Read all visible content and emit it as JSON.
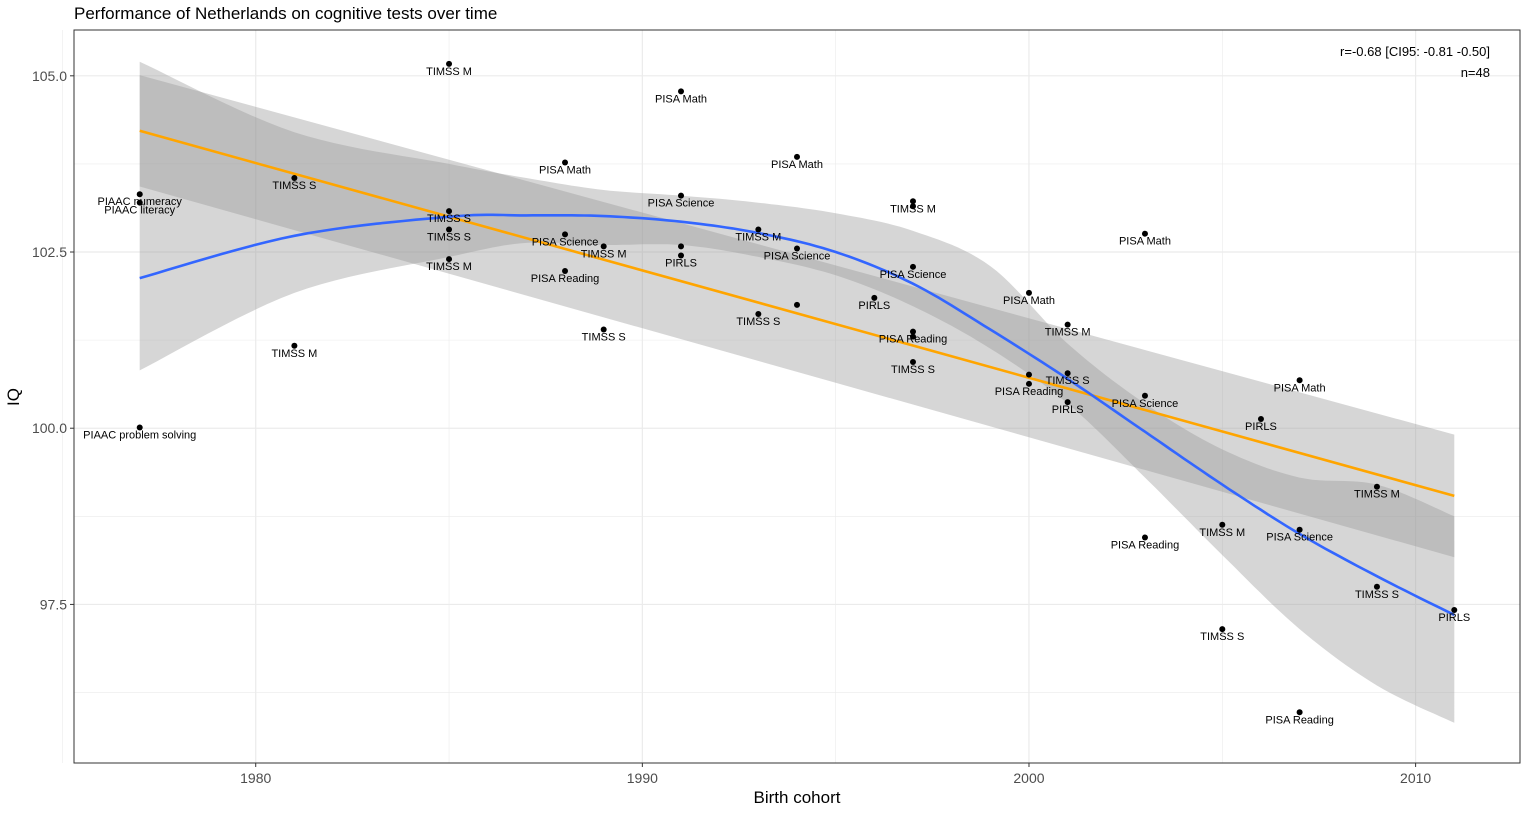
{
  "chart_data": {
    "type": "scatter",
    "title": "Performance of Netherlands on cognitive tests over time",
    "xlabel": "Birth cohort",
    "ylabel": "IQ",
    "xlim": [
      1975.3,
      2012.7
    ],
    "ylim": [
      95.25,
      105.65
    ],
    "x_ticks": [
      1980,
      1990,
      2000,
      2010
    ],
    "y_ticks": [
      97.5,
      100.0,
      102.5,
      105.0
    ],
    "x_tick_labels": [
      "1980",
      "1990",
      "2000",
      "2010"
    ],
    "y_tick_labels": [
      "97.5",
      "100.0",
      "102.5",
      "105.0"
    ],
    "x_minor": [
      1975,
      1985,
      1995,
      2005
    ],
    "y_minor": [
      96.25,
      98.75,
      101.25,
      103.75
    ],
    "grid": true,
    "annotation": [
      "r=-0.68 [CI95: -0.81 -0.50]",
      "n=48"
    ],
    "points": [
      {
        "x": 1977,
        "y": 103.32,
        "label": "PIAAC numeracy"
      },
      {
        "x": 1977,
        "y": 103.2,
        "label": "PIAAC literacy"
      },
      {
        "x": 1977,
        "y": 100.01,
        "label": "PIAAC problem solving"
      },
      {
        "x": 1981,
        "y": 103.55,
        "label": "TIMSS S"
      },
      {
        "x": 1981,
        "y": 101.17,
        "label": "TIMSS M"
      },
      {
        "x": 1985,
        "y": 105.17,
        "label": "TIMSS M"
      },
      {
        "x": 1985,
        "y": 103.08,
        "label": "TIMSS S"
      },
      {
        "x": 1985,
        "y": 102.82,
        "label": "TIMSS S"
      },
      {
        "x": 1985,
        "y": 102.4,
        "label": "TIMSS M"
      },
      {
        "x": 1988,
        "y": 103.77,
        "label": "PISA Math"
      },
      {
        "x": 1988,
        "y": 102.75,
        "label": "PISA Science"
      },
      {
        "x": 1988,
        "y": 102.23,
        "label": "PISA Reading"
      },
      {
        "x": 1989,
        "y": 102.58,
        "label": "TIMSS M"
      },
      {
        "x": 1989,
        "y": 101.4,
        "label": "TIMSS S"
      },
      {
        "x": 1991,
        "y": 104.78,
        "label": "PISA Math"
      },
      {
        "x": 1991,
        "y": 103.3,
        "label": "PISA Science"
      },
      {
        "x": 1991,
        "y": 102.58,
        "label": ""
      },
      {
        "x": 1991,
        "y": 102.45,
        "label": "PIRLS"
      },
      {
        "x": 1993,
        "y": 102.82,
        "label": "TIMSS M"
      },
      {
        "x": 1993,
        "y": 101.62,
        "label": "TIMSS S"
      },
      {
        "x": 1994,
        "y": 103.85,
        "label": "PISA Math"
      },
      {
        "x": 1994,
        "y": 102.55,
        "label": "PISA Science"
      },
      {
        "x": 1994,
        "y": 101.75,
        "label": ""
      },
      {
        "x": 1996,
        "y": 101.85,
        "label": "PIRLS"
      },
      {
        "x": 1997,
        "y": 103.22,
        "label": "TIMSS M"
      },
      {
        "x": 1997,
        "y": 103.15,
        "label": ""
      },
      {
        "x": 1997,
        "y": 102.29,
        "label": "PISA Science"
      },
      {
        "x": 1997,
        "y": 101.37,
        "label": "PISA Reading"
      },
      {
        "x": 1997,
        "y": 101.3,
        "label": ""
      },
      {
        "x": 1997,
        "y": 100.94,
        "label": "TIMSS S"
      },
      {
        "x": 2000,
        "y": 101.92,
        "label": "PISA Math"
      },
      {
        "x": 2000,
        "y": 100.76,
        "label": ""
      },
      {
        "x": 2000,
        "y": 100.63,
        "label": "PISA Reading"
      },
      {
        "x": 2001,
        "y": 101.47,
        "label": "TIMSS M"
      },
      {
        "x": 2001,
        "y": 100.78,
        "label": "TIMSS S"
      },
      {
        "x": 2001,
        "y": 100.37,
        "label": "PIRLS"
      },
      {
        "x": 2003,
        "y": 102.76,
        "label": "PISA Math"
      },
      {
        "x": 2003,
        "y": 100.46,
        "label": "PISA Science"
      },
      {
        "x": 2003,
        "y": 98.45,
        "label": "PISA Reading"
      },
      {
        "x": 2005,
        "y": 98.63,
        "label": "TIMSS M"
      },
      {
        "x": 2005,
        "y": 97.15,
        "label": "TIMSS S"
      },
      {
        "x": 2006,
        "y": 100.13,
        "label": "PIRLS"
      },
      {
        "x": 2007,
        "y": 100.68,
        "label": "PISA Math"
      },
      {
        "x": 2007,
        "y": 98.56,
        "label": "PISA Science"
      },
      {
        "x": 2007,
        "y": 95.97,
        "label": "PISA Reading"
      },
      {
        "x": 2009,
        "y": 99.17,
        "label": "TIMSS M"
      },
      {
        "x": 2009,
        "y": 97.75,
        "label": "TIMSS S"
      },
      {
        "x": 2011,
        "y": 97.42,
        "label": "PIRLS"
      }
    ],
    "linear_fit": {
      "color": "#FFA500",
      "x": [
        1977,
        2011
      ],
      "y": [
        104.22,
        99.04
      ],
      "ci_lower": [
        103.43,
        98.17
      ],
      "ci_upper": [
        105.01,
        99.91
      ]
    },
    "smooth_fit": {
      "color": "#3366FF",
      "x": [
        1977,
        1981,
        1985,
        1987,
        1989,
        1991,
        1993,
        1995,
        1997,
        1999,
        2001,
        2003,
        2005,
        2007,
        2009,
        2011
      ],
      "y": [
        102.13,
        102.73,
        103.0,
        103.02,
        103.01,
        102.93,
        102.77,
        102.5,
        102.05,
        101.4,
        100.7,
        99.95,
        99.2,
        98.5,
        97.9,
        97.35
      ],
      "ci_lower": [
        100.82,
        101.92,
        102.43,
        102.63,
        102.6,
        102.6,
        102.43,
        102.17,
        101.73,
        101.13,
        100.35,
        99.3,
        98.2,
        97.15,
        96.35,
        95.82
      ],
      "ci_upper": [
        105.2,
        104.2,
        103.75,
        103.55,
        103.38,
        103.3,
        103.2,
        103.05,
        102.8,
        102.3,
        101.2,
        100.35,
        99.7,
        99.3,
        99.2,
        98.75
      ]
    },
    "ci_band_color": "#999999"
  }
}
